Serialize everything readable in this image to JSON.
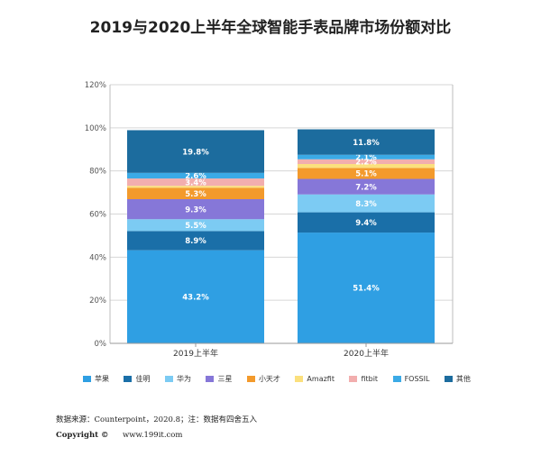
{
  "chart_data": {
    "type": "bar",
    "stacked": true,
    "title": "2019与2020上半年全球智能手表品牌市场份额对比",
    "categories": [
      "2019上半年",
      "2020上半年"
    ],
    "yticks": [
      "0%",
      "20%",
      "40%",
      "60%",
      "80%",
      "100%",
      "120%"
    ],
    "ylim": [
      0,
      120
    ],
    "grid": true,
    "legend_position": "bottom",
    "series": [
      {
        "name": "苹果",
        "color": "#2f9fe3",
        "values": [
          43.2,
          51.4
        ],
        "labels": [
          "43.2%",
          "51.4%"
        ]
      },
      {
        "name": "佳明",
        "color": "#1a6fa8",
        "values": [
          8.9,
          9.4
        ],
        "labels": [
          "8.9%",
          "9.4%"
        ]
      },
      {
        "name": "华为",
        "color": "#7ccbf3",
        "values": [
          5.5,
          8.3
        ],
        "labels": [
          "5.5%",
          "8.3%"
        ]
      },
      {
        "name": "三星",
        "color": "#8677d8",
        "values": [
          9.3,
          7.2
        ],
        "labels": [
          "9.3%",
          "7.2%"
        ]
      },
      {
        "name": "小天才",
        "color": "#f39a2c",
        "values": [
          5.3,
          5.1
        ],
        "labels": [
          "5.3%",
          "5.1%"
        ]
      },
      {
        "name": "Amazfit",
        "color": "#fbe07d",
        "values": [
          0.9,
          1.8
        ],
        "labels": [
          "",
          ""
        ]
      },
      {
        "name": "fitbit",
        "color": "#f2aeae",
        "values": [
          3.4,
          2.2
        ],
        "labels": [
          "3.4%",
          "2.2%"
        ]
      },
      {
        "name": "FOSSIL",
        "color": "#3baae6",
        "values": [
          2.6,
          2.1
        ],
        "labels": [
          "2.6%",
          "2.1%"
        ]
      },
      {
        "name": "其他",
        "color": "#1c6c9e",
        "values": [
          19.8,
          11.8
        ],
        "labels": [
          "19.8%",
          "11.8%"
        ]
      }
    ]
  },
  "footer": {
    "source": "数据来源：Counterpoint，2020.8；注：数据有四舍五入",
    "copyright_label": "Copyright ©",
    "copyright_site": "www.199it.com"
  }
}
